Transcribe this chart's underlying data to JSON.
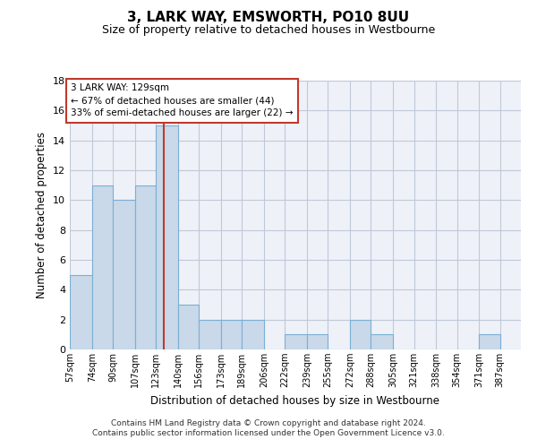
{
  "title": "3, LARK WAY, EMSWORTH, PO10 8UU",
  "subtitle": "Size of property relative to detached houses in Westbourne",
  "xlabel": "Distribution of detached houses by size in Westbourne",
  "ylabel": "Number of detached properties",
  "footer_line1": "Contains HM Land Registry data © Crown copyright and database right 2024.",
  "footer_line2": "Contains public sector information licensed under the Open Government Licence v3.0.",
  "bin_labels": [
    "57sqm",
    "74sqm",
    "90sqm",
    "107sqm",
    "123sqm",
    "140sqm",
    "156sqm",
    "173sqm",
    "189sqm",
    "206sqm",
    "222sqm",
    "239sqm",
    "255sqm",
    "272sqm",
    "288sqm",
    "305sqm",
    "321sqm",
    "338sqm",
    "354sqm",
    "371sqm",
    "387sqm"
  ],
  "bin_edges": [
    57,
    74,
    90,
    107,
    123,
    140,
    156,
    173,
    189,
    206,
    222,
    239,
    255,
    272,
    288,
    305,
    321,
    338,
    354,
    371,
    387,
    403
  ],
  "bar_values": [
    5,
    11,
    10,
    11,
    15,
    3,
    2,
    2,
    2,
    0,
    1,
    1,
    0,
    2,
    1,
    0,
    0,
    0,
    0,
    1,
    0
  ],
  "bar_color": "#c9d9ea",
  "bar_edgecolor": "#7bafd4",
  "grid_color": "#c0c8d8",
  "bg_color": "#eef2f8",
  "property_size": 129,
  "vline_color": "#c0392b",
  "annotation_line1": "3 LARK WAY: 129sqm",
  "annotation_line2": "← 67% of detached houses are smaller (44)",
  "annotation_line3": "33% of semi-detached houses are larger (22) →",
  "annotation_box_color": "#c0392b",
  "ylim": [
    0,
    18
  ],
  "yticks": [
    0,
    2,
    4,
    6,
    8,
    10,
    12,
    14,
    16,
    18
  ]
}
